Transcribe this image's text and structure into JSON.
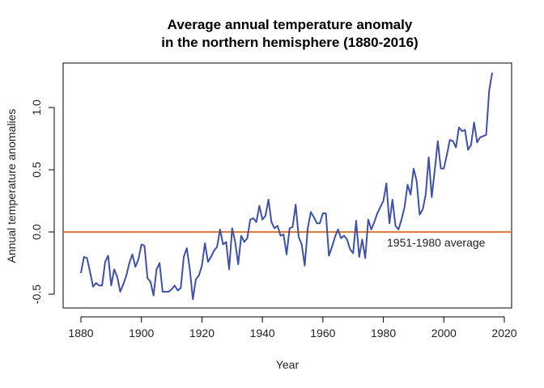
{
  "chart_data": {
    "type": "line",
    "title_line1": "Average annual temperature anomaly",
    "title_line2": "in the northern hemisphere (1880-2016)",
    "xlabel": "Year",
    "ylabel": "Annual temperature anomalies",
    "xlim": [
      1876,
      2024
    ],
    "ylim": [
      -0.61,
      1.36
    ],
    "xticks": [
      1880,
      1900,
      1920,
      1940,
      1960,
      1980,
      2000,
      2020
    ],
    "yticks": [
      -0.5,
      0.0,
      0.5,
      1.0
    ],
    "ytick_labels": [
      "-0.5",
      "0.0",
      "0.5",
      "1.0"
    ],
    "grid": false,
    "x_start": 1880,
    "series": [
      {
        "color": "#3f51a8",
        "values": [
          -0.33,
          -0.2,
          -0.21,
          -0.32,
          -0.44,
          -0.41,
          -0.43,
          -0.43,
          -0.24,
          -0.19,
          -0.43,
          -0.3,
          -0.36,
          -0.48,
          -0.42,
          -0.35,
          -0.25,
          -0.18,
          -0.28,
          -0.22,
          -0.1,
          -0.11,
          -0.37,
          -0.4,
          -0.51,
          -0.3,
          -0.25,
          -0.48,
          -0.48,
          -0.48,
          -0.46,
          -0.43,
          -0.47,
          -0.45,
          -0.2,
          -0.13,
          -0.3,
          -0.54,
          -0.38,
          -0.35,
          -0.27,
          -0.09,
          -0.24,
          -0.2,
          -0.15,
          -0.12,
          0.02,
          -0.1,
          -0.08,
          -0.3,
          0.03,
          -0.08,
          -0.26,
          -0.03,
          -0.08,
          -0.05,
          0.1,
          0.11,
          0.08,
          0.21,
          0.1,
          0.13,
          0.26,
          0.08,
          0.03,
          0.05,
          -0.03,
          -0.02,
          -0.18,
          0.03,
          0.04,
          0.22,
          -0.04,
          -0.1,
          -0.27,
          0.03,
          0.16,
          0.12,
          0.07,
          0.07,
          0.15,
          0.15,
          -0.19,
          -0.12,
          -0.04,
          0.02,
          -0.05,
          -0.03,
          -0.06,
          -0.14,
          -0.17,
          0.09,
          -0.2,
          -0.06,
          -0.21,
          0.1,
          0.02,
          0.08,
          0.15,
          0.2,
          0.25,
          0.39,
          0.07,
          0.26,
          0.05,
          0.02,
          0.1,
          0.2,
          0.38,
          0.3,
          0.51,
          0.41,
          0.14,
          0.18,
          0.3,
          0.6,
          0.28,
          0.5,
          0.73,
          0.51,
          0.51,
          0.62,
          0.74,
          0.73,
          0.68,
          0.84,
          0.81,
          0.82,
          0.66,
          0.7,
          0.88,
          0.72,
          0.76,
          0.77,
          0.78,
          1.14,
          1.28
        ]
      }
    ],
    "reference_line": {
      "y": 0.0,
      "color": "#e07b39",
      "label": "1951-1980 average"
    }
  }
}
